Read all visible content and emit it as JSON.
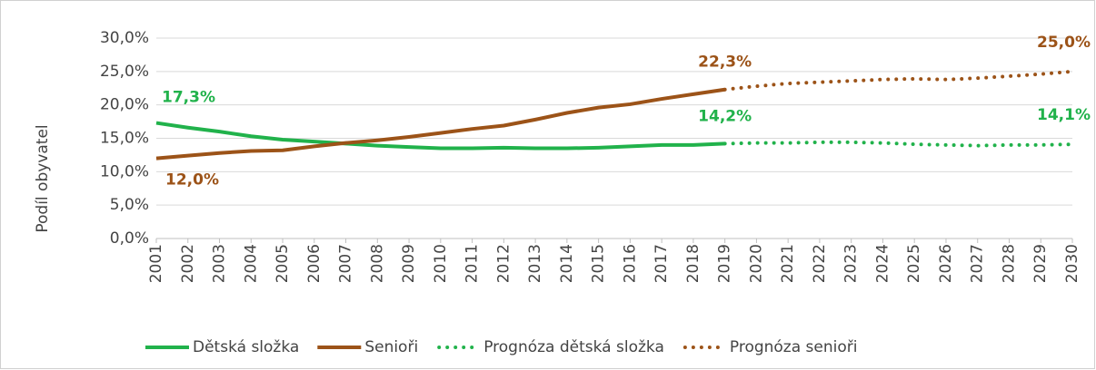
{
  "chart_data": {
    "type": "line",
    "y_axis_label": "Podíl obyvatel",
    "categories": [
      "2001",
      "2002",
      "2003",
      "2004",
      "2005",
      "2006",
      "2007",
      "2008",
      "2009",
      "2010",
      "2011",
      "2012",
      "2013",
      "2014",
      "2015",
      "2016",
      "2017",
      "2018",
      "2019",
      "2020",
      "2021",
      "2022",
      "2023",
      "2024",
      "2025",
      "2026",
      "2027",
      "2028",
      "2029",
      "2030"
    ],
    "ylim": [
      0,
      30
    ],
    "yticks": [
      {
        "value": 0,
        "label": "0,0%"
      },
      {
        "value": 5,
        "label": "5,0%"
      },
      {
        "value": 10,
        "label": "10,0%"
      },
      {
        "value": 15,
        "label": "15,0%"
      },
      {
        "value": 20,
        "label": "20,0%"
      },
      {
        "value": 25,
        "label": "25,0%"
      },
      {
        "value": 30,
        "label": "30,0%"
      }
    ],
    "grid": true,
    "legend": "bottom",
    "series": [
      {
        "name": "Dětská složka",
        "color": "#21b24b",
        "style": "solid",
        "values": [
          17.3,
          16.6,
          16.0,
          15.3,
          14.8,
          14.5,
          14.2,
          13.9,
          13.7,
          13.5,
          13.5,
          13.6,
          13.5,
          13.5,
          13.6,
          13.8,
          14.0,
          14.0,
          14.2,
          null,
          null,
          null,
          null,
          null,
          null,
          null,
          null,
          null,
          null,
          null
        ],
        "value_labels": [
          "17,3%",
          null,
          null,
          null,
          null,
          null,
          null,
          null,
          null,
          null,
          null,
          null,
          null,
          null,
          null,
          null,
          null,
          null,
          "14,2%",
          null,
          null,
          null,
          null,
          null,
          null,
          null,
          null,
          null,
          null,
          null
        ]
      },
      {
        "name": "Senioři",
        "color": "#9c5318",
        "style": "solid",
        "values": [
          12.0,
          12.4,
          12.8,
          13.1,
          13.2,
          13.8,
          14.3,
          14.7,
          15.2,
          15.8,
          16.4,
          16.9,
          17.8,
          18.8,
          19.6,
          20.1,
          20.9,
          21.6,
          22.3,
          null,
          null,
          null,
          null,
          null,
          null,
          null,
          null,
          null,
          null,
          null
        ],
        "value_labels": [
          "12,0%",
          null,
          null,
          null,
          null,
          null,
          null,
          null,
          null,
          null,
          null,
          null,
          null,
          null,
          null,
          null,
          null,
          null,
          "22,3%",
          null,
          null,
          null,
          null,
          null,
          null,
          null,
          null,
          null,
          null,
          null
        ]
      },
      {
        "name": "Prognóza dětská složka",
        "color": "#21b24b",
        "style": "dotted",
        "values": [
          null,
          null,
          null,
          null,
          null,
          null,
          null,
          null,
          null,
          null,
          null,
          null,
          null,
          null,
          null,
          null,
          null,
          null,
          14.2,
          14.3,
          14.3,
          14.4,
          14.4,
          14.3,
          14.1,
          14.0,
          13.9,
          14.0,
          14.0,
          14.1
        ],
        "value_labels": [
          null,
          null,
          null,
          null,
          null,
          null,
          null,
          null,
          null,
          null,
          null,
          null,
          null,
          null,
          null,
          null,
          null,
          null,
          null,
          null,
          null,
          null,
          null,
          null,
          null,
          null,
          null,
          null,
          null,
          "14,1%"
        ]
      },
      {
        "name": "Prognóza senioři",
        "color": "#9c5318",
        "style": "dotted",
        "values": [
          null,
          null,
          null,
          null,
          null,
          null,
          null,
          null,
          null,
          null,
          null,
          null,
          null,
          null,
          null,
          null,
          null,
          null,
          22.3,
          22.8,
          23.2,
          23.4,
          23.6,
          23.8,
          23.9,
          23.8,
          24.0,
          24.3,
          24.6,
          25.0
        ],
        "value_labels": [
          null,
          null,
          null,
          null,
          null,
          null,
          null,
          null,
          null,
          null,
          null,
          null,
          null,
          null,
          null,
          null,
          null,
          null,
          null,
          null,
          null,
          null,
          null,
          null,
          null,
          null,
          null,
          null,
          null,
          "25,0%"
        ]
      }
    ]
  }
}
